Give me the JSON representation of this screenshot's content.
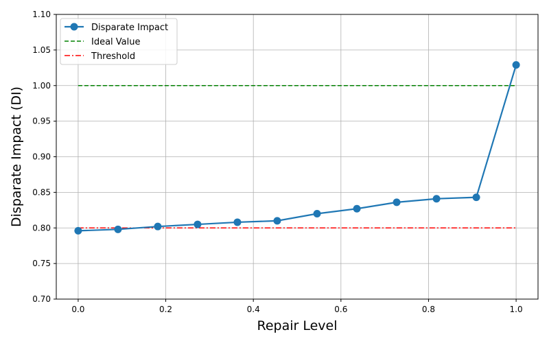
{
  "chart_data": {
    "type": "line",
    "title": "",
    "xlabel": "Repair Level",
    "ylabel": "Disparate Impact (DI)",
    "xlim": [
      -0.05,
      1.05
    ],
    "ylim": [
      0.7,
      1.1
    ],
    "xticks": [
      "0.0",
      "0.2",
      "0.4",
      "0.6",
      "0.8",
      "1.0"
    ],
    "yticks": [
      "0.70",
      "0.75",
      "0.80",
      "0.85",
      "0.90",
      "0.95",
      "1.00",
      "1.05",
      "1.10"
    ],
    "grid": true,
    "legend_position": "top-left",
    "series": [
      {
        "name": "Disparate Impact",
        "style": "solid-markers",
        "color": "#1f77b4",
        "x": [
          0.0,
          0.0909,
          0.1818,
          0.2727,
          0.3636,
          0.4545,
          0.5455,
          0.6364,
          0.7273,
          0.8182,
          0.9091,
          1.0
        ],
        "y": [
          0.796,
          0.798,
          0.802,
          0.805,
          0.808,
          0.81,
          0.82,
          0.827,
          0.836,
          0.841,
          0.843,
          1.029
        ]
      },
      {
        "name": "Ideal Value",
        "style": "dashed",
        "color": "#008000",
        "x": [
          0.0,
          1.0
        ],
        "y": [
          1.0,
          1.0
        ]
      },
      {
        "name": "Threshold",
        "style": "dashdot",
        "color": "#ff0000",
        "x": [
          0.0,
          1.0
        ],
        "y": [
          0.8,
          0.8
        ]
      }
    ]
  }
}
